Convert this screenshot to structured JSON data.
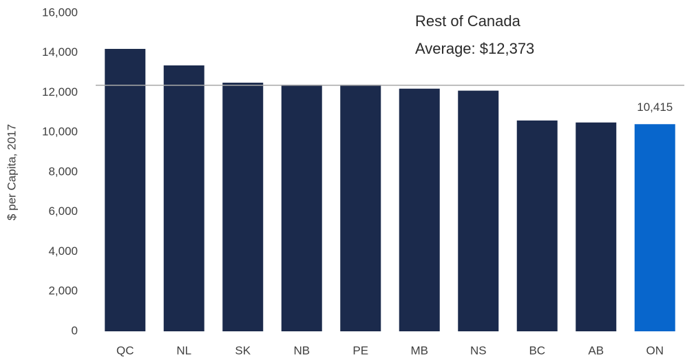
{
  "chart_data": {
    "type": "bar",
    "y_label": "$ per Capita, 2017",
    "categories": [
      "QC",
      "NL",
      "SK",
      "NB",
      "PE",
      "MB",
      "NS",
      "BC",
      "AB",
      "ON"
    ],
    "values": [
      14200,
      13370,
      12500,
      12400,
      12400,
      12200,
      12100,
      10600,
      10500,
      10415
    ],
    "value_labels": [
      null,
      null,
      null,
      null,
      null,
      null,
      null,
      null,
      null,
      "10,415"
    ],
    "colors": [
      "#1b2a4c",
      "#1b2a4c",
      "#1b2a4c",
      "#1b2a4c",
      "#1b2a4c",
      "#1b2a4c",
      "#1b2a4c",
      "#1b2a4c",
      "#1b2a4c",
      "#0866cc"
    ],
    "reference_line": {
      "value": 12373,
      "color": "#a8a8a8"
    },
    "annotation": [
      "Rest of Canada",
      "Average: $12,373"
    ],
    "ylim": [
      0,
      16000
    ],
    "yticks": [
      0,
      {
        "value": 2000,
        "label": "2,000"
      },
      {
        "value": 4000,
        "label": "4,000"
      },
      {
        "value": 6000,
        "label": "6,000"
      },
      {
        "value": 8000,
        "label": "8,000"
      },
      {
        "value": 10000,
        "label": "10,000"
      },
      {
        "value": 12000,
        "label": "12,000"
      },
      {
        "value": 14000,
        "label": "14,000"
      },
      {
        "value": 16000,
        "label": "16,000"
      }
    ],
    "grid": false
  }
}
